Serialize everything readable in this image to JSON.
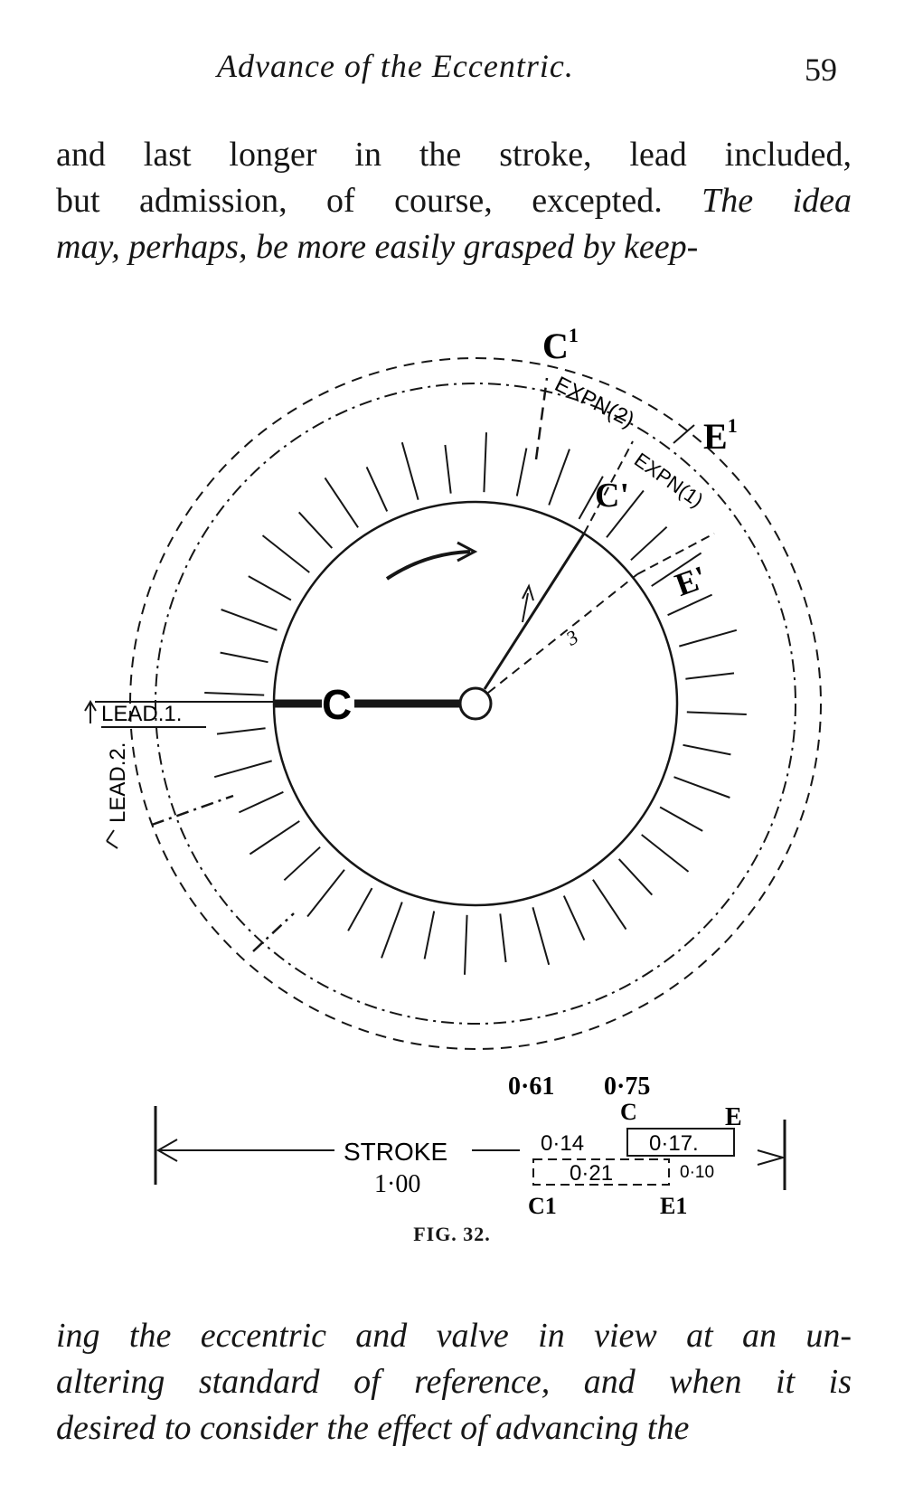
{
  "header": {
    "title": "Advance of the Eccentric.",
    "page_number": "59"
  },
  "para_top": {
    "line1": "and last longer in the stroke, lead included,",
    "line2_roman": "but admission, of course, excepted.",
    "line2_italic": "The idea",
    "line3": "may, perhaps, be more easily grasped by keep-"
  },
  "figure": {
    "labels": {
      "c1_top": "C",
      "c1_sup": "1",
      "e1_top": "E",
      "e1_sup": "1",
      "c_prime": "C'",
      "e_prime": "E'",
      "crank_c": "C",
      "expn2": "EXPN(2)",
      "expn1": "EXPN(1)",
      "lead1": "LEAD.1.",
      "lead2": "LEAD.2.",
      "angle_mark": "3"
    },
    "bar": {
      "stroke_label": "STROKE",
      "stroke_value": "1·00",
      "val_061": "0·61",
      "val_075": "0·75",
      "label_c": "C",
      "label_e": "E",
      "val_014": "0·14",
      "val_017": "0·17.",
      "val_021": "0·21",
      "val_010": "0·10",
      "label_c1": "C1",
      "label_e1": "E1"
    },
    "caption": "FIG. 32."
  },
  "para_bottom": {
    "line1": "ing the eccentric and valve in view at an un-",
    "line2": "altering standard of reference, and when it is",
    "line3": "desired to consider the effect of advancing the"
  }
}
